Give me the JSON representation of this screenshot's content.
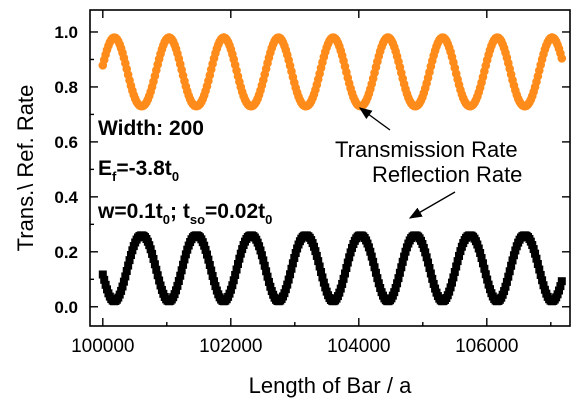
{
  "chart_data": {
    "type": "scatter",
    "xlabel": "Length of Bar / a",
    "ylabel": "Trans.\\ Ref. Rate",
    "xlim": [
      99800,
      107300
    ],
    "ylim": [
      -0.07,
      1.08
    ],
    "xticks": [
      100000,
      102000,
      104000,
      106000
    ],
    "xtick_labels": [
      "100000",
      "102000",
      "104000",
      "106000"
    ],
    "yticks": [
      0.0,
      0.2,
      0.4,
      0.6,
      0.8,
      1.0
    ],
    "ytick_labels": [
      "0.0",
      "0.2",
      "0.4",
      "0.6",
      "0.8",
      "1.0"
    ],
    "period": 855,
    "x_start": 100000,
    "x_step": 22,
    "x_end": 107180,
    "series": [
      {
        "name": "Transmission Rate",
        "marker": "circle",
        "color": "#FF8C1A",
        "peak_x": [
          100180,
          101035,
          101890,
          102745,
          103600,
          104455,
          105310,
          106165,
          107020
        ],
        "max": 0.98,
        "min": 0.73
      },
      {
        "name": "Reflection Rate",
        "marker": "square",
        "color": "#000000",
        "dip_x": [
          100180,
          101035,
          101890,
          102745,
          103600,
          104455,
          105310,
          106165,
          107020
        ],
        "max": 0.26,
        "min": 0.02
      }
    ],
    "annotations": [
      {
        "text": "Transmission Rate",
        "target": "transmission-series"
      },
      {
        "text": "Reflection Rate",
        "target": "reflection-series"
      }
    ]
  },
  "params": {
    "width": "Width: 200",
    "ef_prefix": "E",
    "ef_sub": "f",
    "ef_value": "=-3.8t",
    "ef_t_sub": "0",
    "w_prefix": "w=0.1t",
    "w_t_sub": "0",
    "w_sep": "; t",
    "tso_sub": "so",
    "tso_value": "=0.02t",
    "tso_t_sub": "0"
  }
}
